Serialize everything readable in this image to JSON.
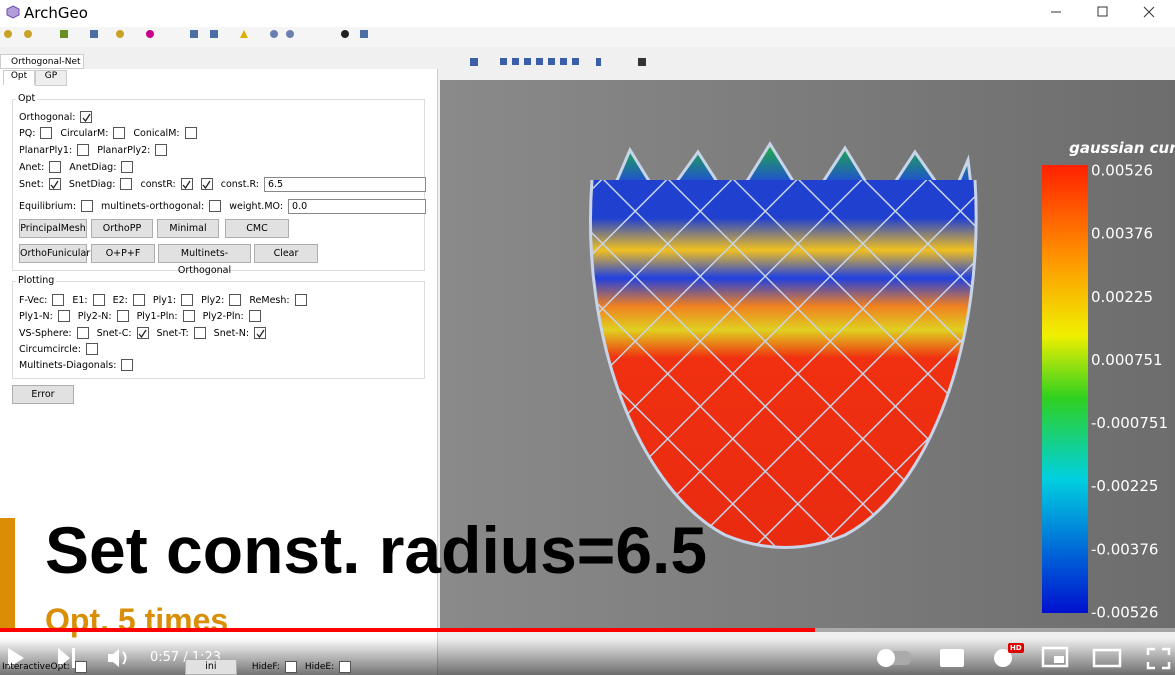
{
  "window": {
    "title": "ArchGeo"
  },
  "panel": {
    "tab": "Orthogonal-Net",
    "subtabs": [
      "Opt",
      "GP"
    ],
    "opt": {
      "title": "Opt",
      "rows": [
        [
          {
            "label": "Orthogonal:",
            "checked": true
          }
        ],
        [
          {
            "label": "PQ:",
            "checked": false
          },
          {
            "label": "CircularM:",
            "checked": false
          },
          {
            "label": "ConicalM:",
            "checked": false
          }
        ],
        [
          {
            "label": "PlanarPly1:",
            "checked": false
          },
          {
            "label": "PlanarPly2:",
            "checked": false
          }
        ],
        [
          {
            "label": "Anet:",
            "checked": false
          },
          {
            "label": "AnetDiag:",
            "checked": false
          }
        ],
        [
          {
            "label": "Snet:",
            "checked": true
          },
          {
            "label": "SnetDiag:",
            "checked": false
          },
          {
            "label": "constR:",
            "checked": true
          },
          {
            "checked": true
          },
          {
            "label": "const.R:",
            "field": "6.5"
          }
        ],
        [
          {
            "label": "Equilibrium:",
            "checked": false
          },
          {
            "label": "multinets-orthogonal:",
            "checked": false
          },
          {
            "label": "weight.MO:",
            "field": "0.0"
          }
        ]
      ],
      "button_rows": [
        [
          "PrincipalMesh",
          "OrthoPP",
          "Minimal",
          "CMC"
        ],
        [
          "OrthoFunicular",
          "O+P+F",
          "Multinets-Orthogonal",
          "Clear"
        ]
      ]
    },
    "plotting": {
      "title": "Plotting",
      "rows": [
        [
          {
            "label": "F-Vec:",
            "checked": false
          },
          {
            "label": "E1:",
            "checked": false
          },
          {
            "label": "E2:",
            "checked": false
          },
          {
            "label": "Ply1:",
            "checked": false
          },
          {
            "label": "Ply2:",
            "checked": false
          },
          {
            "label": "ReMesh:",
            "checked": false
          }
        ],
        [
          {
            "label": "Ply1-N:",
            "checked": false
          },
          {
            "label": "Ply2-N:",
            "checked": false
          },
          {
            "label": "Ply1-Pln:",
            "checked": false
          },
          {
            "label": "Ply2-Pln:",
            "checked": false
          }
        ],
        [
          {
            "label": "VS-Sphere:",
            "checked": false
          },
          {
            "label": "Snet-C:",
            "checked": true
          },
          {
            "label": "Snet-T:",
            "checked": false
          },
          {
            "label": "Snet-N:",
            "checked": true
          }
        ],
        [
          {
            "label": "Circumcircle:",
            "checked": false
          }
        ],
        [
          {
            "label": "Multinets-Diagonals:",
            "checked": false
          }
        ]
      ]
    },
    "error_button": "Error",
    "bottom": {
      "interactive": {
        "label": "InteractiveOpt:",
        "checked": false
      },
      "button": "ini",
      "hide": [
        {
          "label": "HideF:",
          "checked": false
        },
        {
          "label": "HideE:",
          "checked": false
        }
      ]
    }
  },
  "viewer": {
    "colorbar": {
      "title": "gaussian curv.",
      "labels": [
        "0.00526",
        "0.00376",
        "0.00225",
        "0.000751",
        "-0.000751",
        "-0.00225",
        "-0.00376",
        "-0.00526"
      ]
    }
  },
  "overlay": {
    "caption": "Set const. radius=6.5",
    "subcaption": "Opt. 5 times"
  },
  "player": {
    "time": "0:57 / 1:23",
    "badge": "HD"
  }
}
